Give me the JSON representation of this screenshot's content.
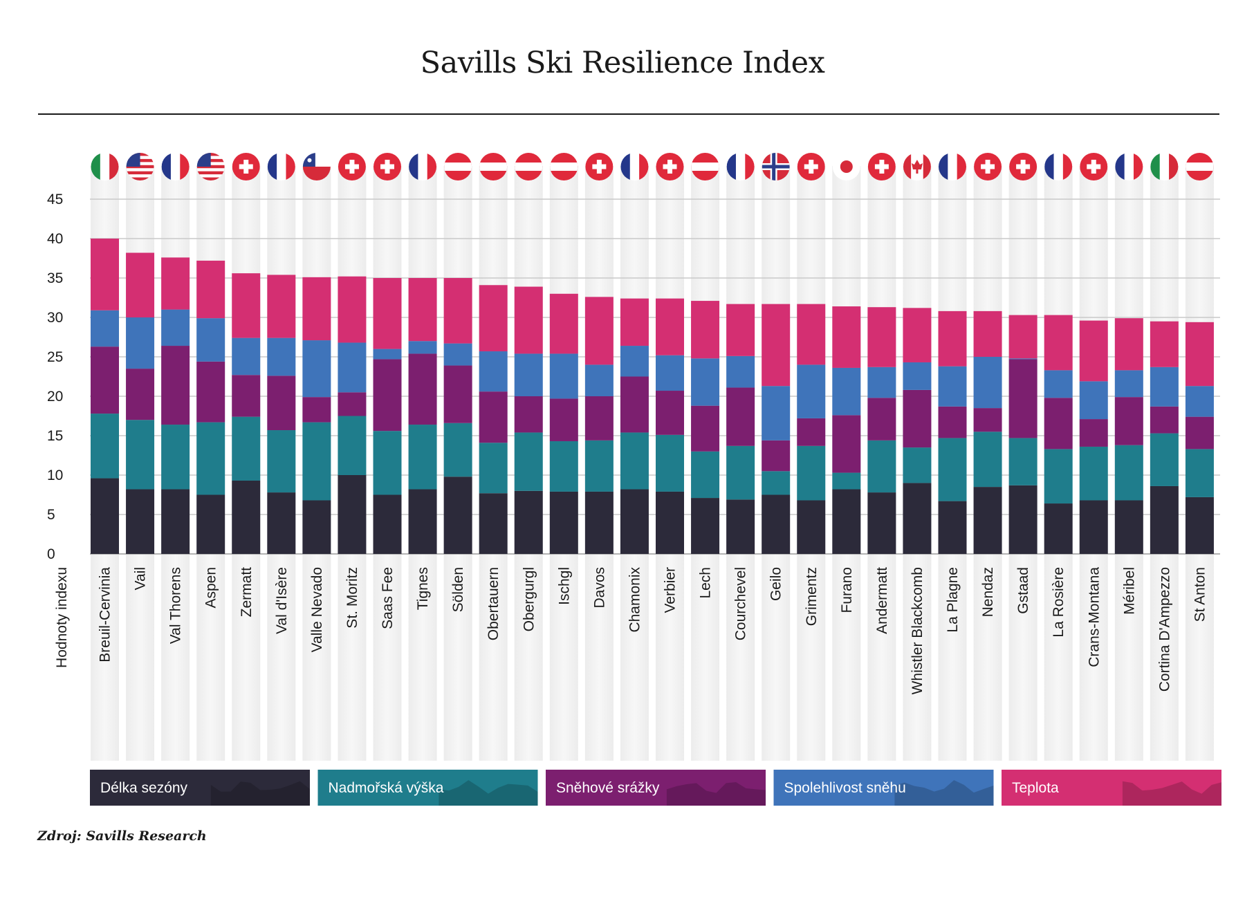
{
  "chart_data": {
    "type": "bar",
    "stacked": true,
    "title": "Savills Ski Resilience Index",
    "ylabel": "Hodnoty indexu",
    "ylim": [
      0,
      45
    ],
    "yticks": [
      0,
      5,
      10,
      15,
      20,
      25,
      30,
      35,
      40,
      45
    ],
    "grid": true,
    "legend_position": "bottom",
    "categories": [
      "Breuil-Cervinia",
      "Vail",
      "Val Thorens",
      "Aspen",
      "Zermatt",
      "Val d'Isère",
      "Valle Nevado",
      "St. Moritz",
      "Saas Fee",
      "Tignes",
      "Sölden",
      "Obertauern",
      "Obergurgl",
      "Ischgl",
      "Davos",
      "Chamonix",
      "Verbier",
      "Lech",
      "Courchevel",
      "Geilo",
      "Grimentz",
      "Furano",
      "Andermatt",
      "Whistler Blackcomb",
      "La Plagne",
      "Nendaz",
      "Gstaad",
      "La Rosière",
      "Crans-Montana",
      "Méribel",
      "Cortina D'Ampezzo",
      "St Anton"
    ],
    "countries": [
      "it",
      "us",
      "fr",
      "us",
      "ch",
      "fr",
      "cl",
      "ch",
      "ch",
      "fr",
      "at",
      "at",
      "at",
      "at",
      "ch",
      "fr",
      "ch",
      "at",
      "fr",
      "no",
      "ch",
      "jp",
      "ch",
      "ca",
      "fr",
      "ch",
      "ch",
      "fr",
      "ch",
      "fr",
      "it",
      "at"
    ],
    "series": [
      {
        "name": "Délka sezóny",
        "color": "#2c2a3a",
        "values": [
          9.6,
          8.2,
          8.2,
          7.5,
          9.3,
          7.8,
          6.8,
          10.0,
          7.5,
          8.2,
          9.8,
          7.7,
          8.0,
          7.9,
          7.9,
          8.2,
          7.9,
          7.1,
          6.9,
          7.5,
          6.8,
          8.2,
          7.8,
          9.0,
          6.7,
          8.5,
          8.7,
          6.4,
          6.8,
          6.8,
          8.6,
          7.2
        ]
      },
      {
        "name": "Nadmořská výška",
        "color": "#1f7d8c",
        "values": [
          8.2,
          8.8,
          8.2,
          9.2,
          8.1,
          7.9,
          9.9,
          7.5,
          8.1,
          8.2,
          6.8,
          6.4,
          7.4,
          6.4,
          6.5,
          7.2,
          7.2,
          5.9,
          6.8,
          3.0,
          6.9,
          2.1,
          6.6,
          4.5,
          8.0,
          7.0,
          6.0,
          6.9,
          6.8,
          7.0,
          6.7,
          6.1
        ]
      },
      {
        "name": "Sněhové srážky",
        "color": "#7c1f6f",
        "values": [
          8.5,
          6.5,
          10.0,
          7.7,
          5.3,
          6.9,
          3.2,
          3.0,
          9.1,
          9.0,
          7.3,
          6.5,
          4.6,
          5.4,
          5.6,
          7.1,
          5.6,
          5.8,
          7.4,
          3.9,
          3.5,
          7.3,
          5.4,
          7.3,
          4.0,
          3.0,
          10.0,
          6.5,
          3.5,
          6.1,
          3.4,
          4.1
        ]
      },
      {
        "name": "Spolehlivost sněhu",
        "color": "#3f74ba",
        "values": [
          4.6,
          6.5,
          4.6,
          5.5,
          4.7,
          4.8,
          7.2,
          6.3,
          1.3,
          1.6,
          2.8,
          5.1,
          5.4,
          5.7,
          4.0,
          3.9,
          4.5,
          6.0,
          4.0,
          6.9,
          6.8,
          6.0,
          3.9,
          3.5,
          5.1,
          6.5,
          0.1,
          3.5,
          4.8,
          3.4,
          5.0,
          3.9
        ]
      },
      {
        "name": "Teplota",
        "color": "#d42f72",
        "values": [
          9.1,
          8.2,
          6.6,
          7.3,
          8.2,
          8.0,
          8.0,
          8.4,
          9.0,
          8.0,
          8.3,
          8.4,
          8.5,
          7.6,
          8.6,
          6.0,
          7.2,
          7.3,
          6.6,
          10.4,
          7.7,
          7.8,
          7.6,
          6.9,
          7.0,
          5.8,
          5.5,
          7.0,
          7.7,
          6.6,
          5.8,
          8.1
        ]
      }
    ]
  },
  "source": "Zdroj: Savills Research"
}
